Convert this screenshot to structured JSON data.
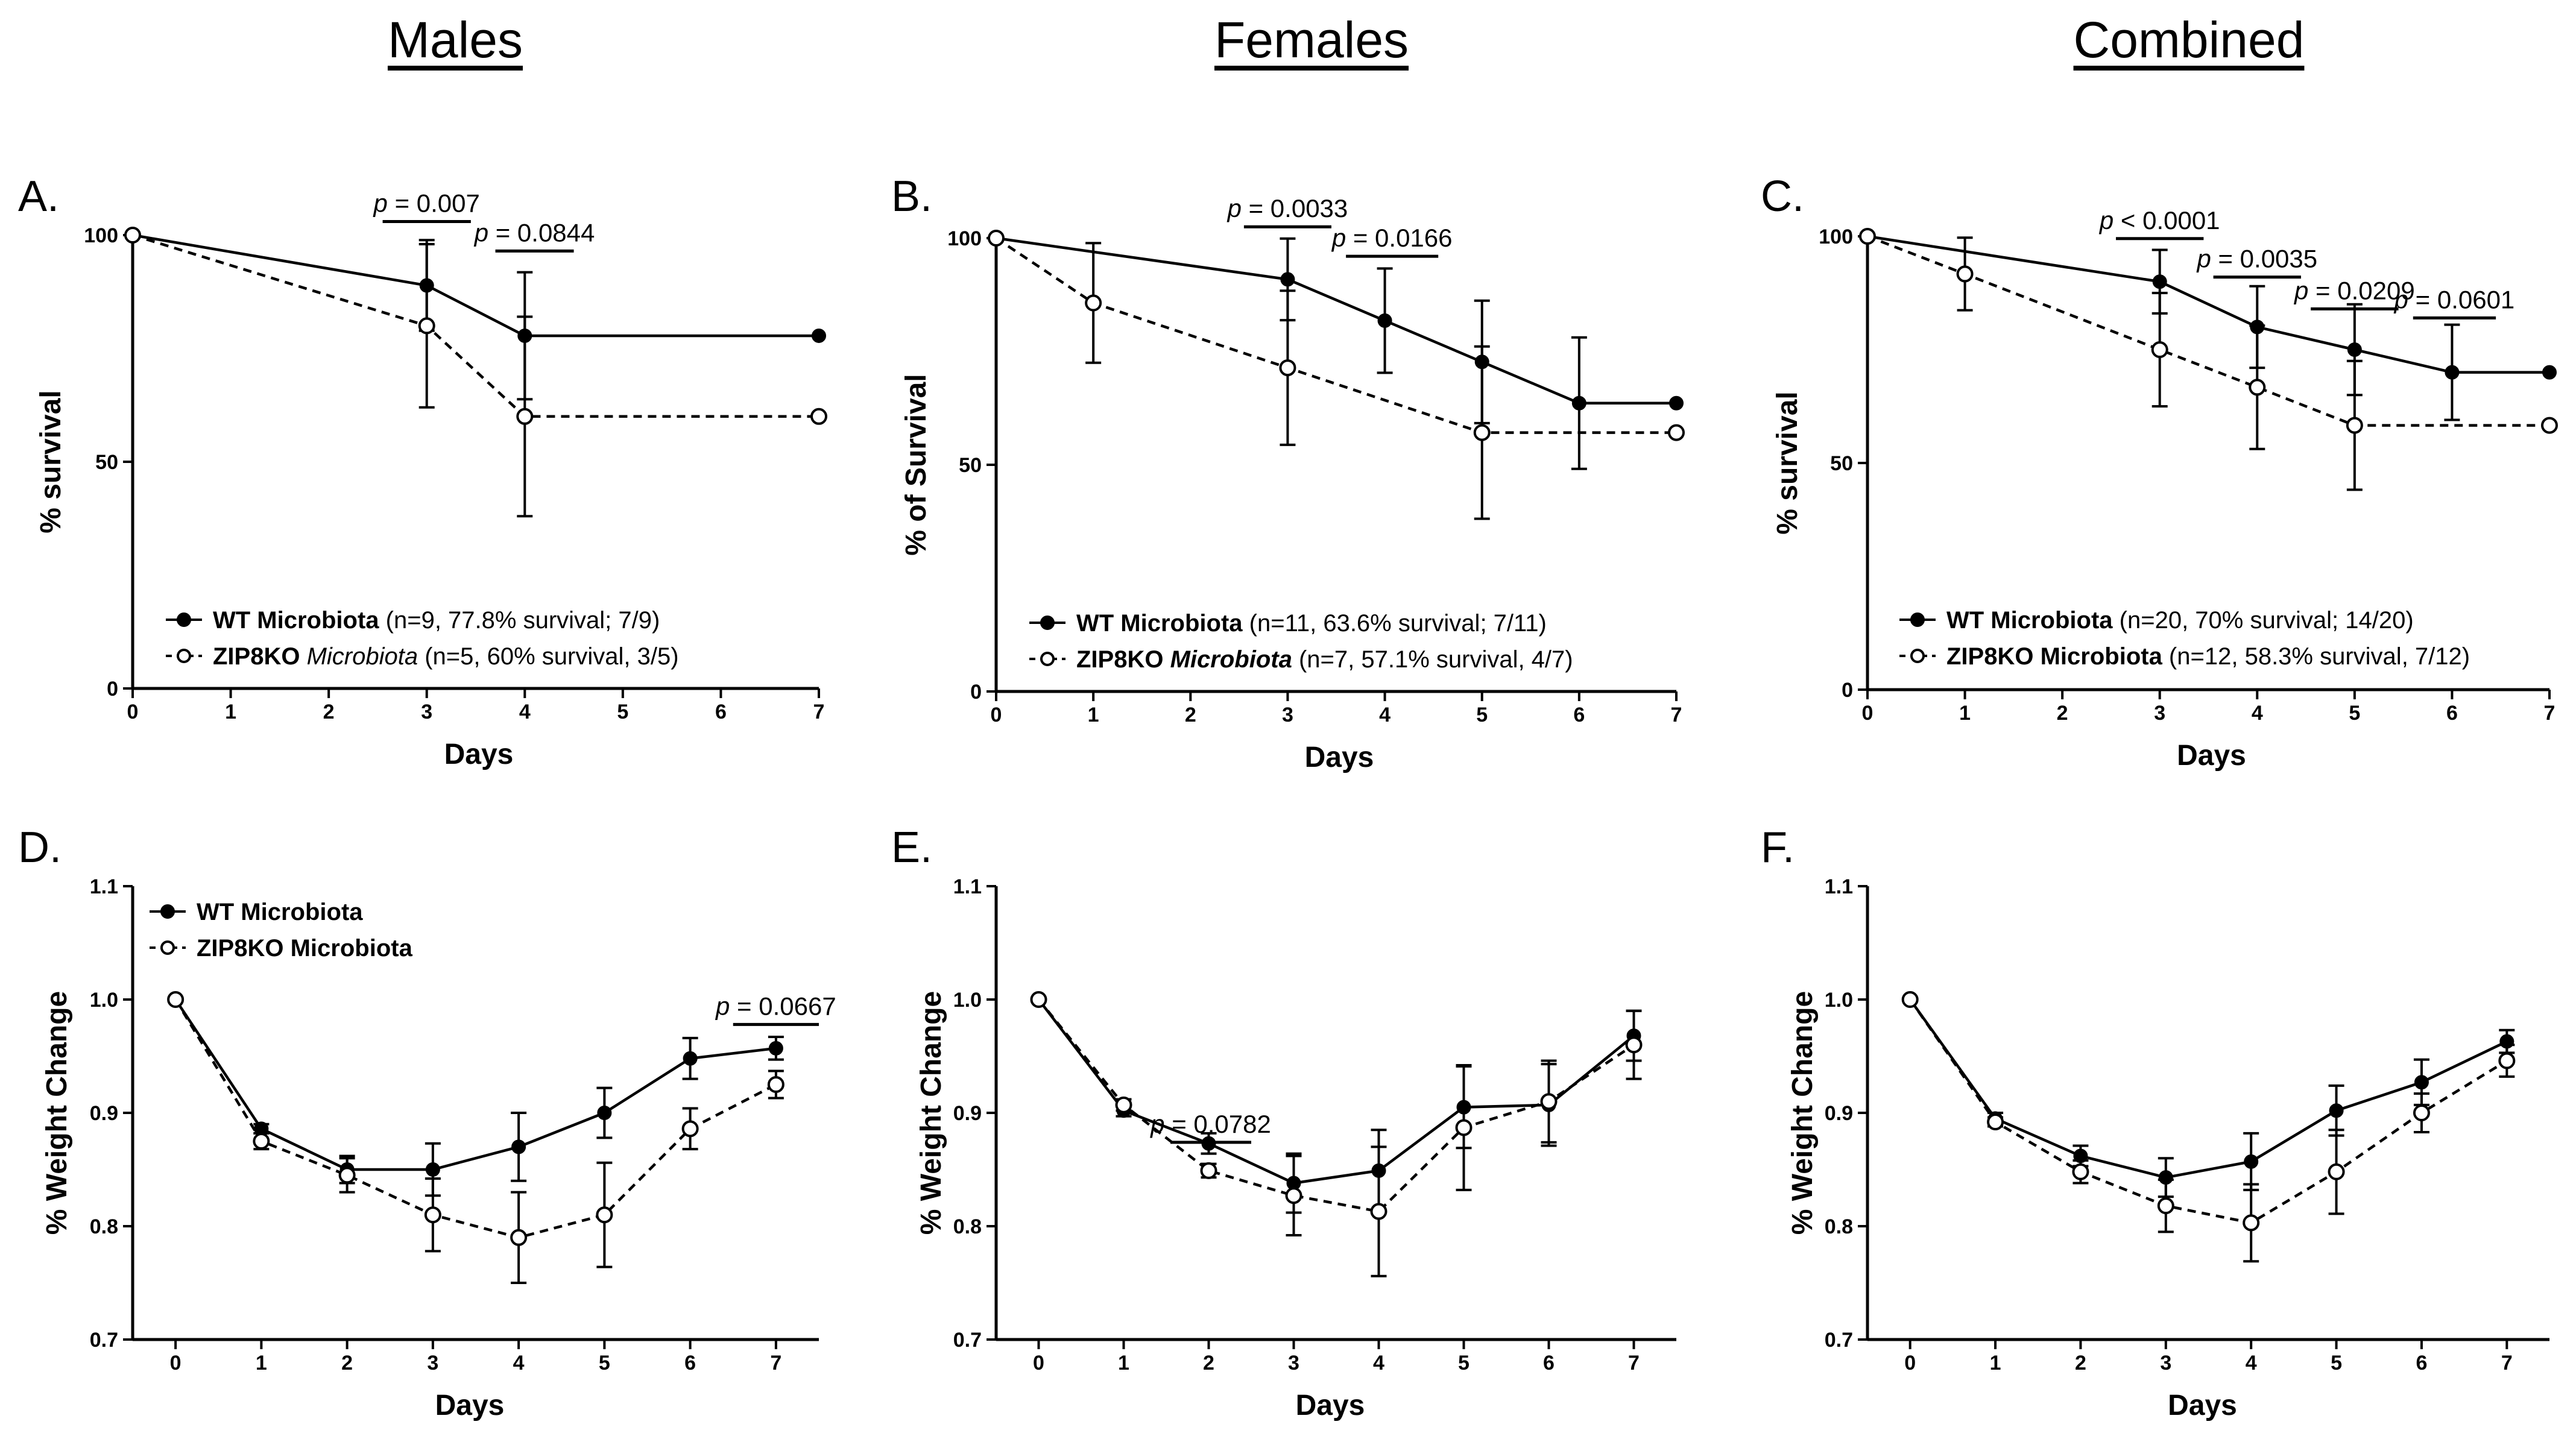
{
  "columns": [
    "Males",
    "Females",
    "Combined"
  ],
  "chart_data": [
    {
      "id": "A",
      "type": "line",
      "panel_label": "A.",
      "xlabel": "Days",
      "ylabel": "% survival",
      "xlim": [
        0,
        7
      ],
      "ylim": [
        0,
        100
      ],
      "xticks": [
        0,
        1,
        2,
        3,
        4,
        5,
        6,
        7
      ],
      "yticks": [
        0,
        50,
        100
      ],
      "series": [
        {
          "name": "WT Microbiota",
          "legend_bold": "WT Microbiota",
          "legend_rest": " (n=9, 77.8% survival; 7/9)",
          "style": "solid",
          "marker": "filled",
          "x": [
            0,
            3,
            4,
            7
          ],
          "y": [
            100,
            88.9,
            77.8,
            77.8
          ],
          "err": [
            null,
            10,
            14,
            null
          ]
        },
        {
          "name": "ZIP8KO Microbiota",
          "legend_bold": "ZIP8KO ",
          "legend_italic": "Microbiota",
          "legend_rest": " (n=5, 60% survival, 3/5)",
          "style": "dashed",
          "marker": "open",
          "x": [
            0,
            3,
            4,
            7
          ],
          "y": [
            100,
            80,
            60,
            60
          ],
          "err": [
            null,
            18,
            22,
            null
          ]
        }
      ],
      "annotations": [
        {
          "prefix": "p",
          "text": " = 0.007",
          "x1": 2.55,
          "x2": 3.45,
          "y": 103
        },
        {
          "prefix": "p",
          "text": " = 0.0844",
          "x1": 3.7,
          "x2": 4.5,
          "y": 96.5
        }
      ]
    },
    {
      "id": "B",
      "type": "line",
      "panel_label": "B.",
      "xlabel": "Days",
      "ylabel": "% of Survival",
      "xlim": [
        0,
        7
      ],
      "ylim": [
        0,
        100
      ],
      "xticks": [
        0,
        1,
        2,
        3,
        4,
        5,
        6,
        7
      ],
      "yticks": [
        0,
        50,
        100
      ],
      "series": [
        {
          "name": "WT Microbiota",
          "legend_bold": "WT Microbiota",
          "legend_rest": " (n=11, 63.6% survival; 7/11)",
          "style": "solid",
          "marker": "filled",
          "x": [
            0,
            3,
            4,
            5,
            6,
            7
          ],
          "y": [
            100,
            90.9,
            81.8,
            72.7,
            63.6,
            63.6
          ],
          "err": [
            null,
            9,
            11.5,
            13.5,
            14.5,
            null
          ]
        },
        {
          "name": "ZIP8KO Microbiota",
          "legend_bold": "ZIP8KO ",
          "legend_boldital": "Microbiota",
          "legend_rest": " (n=7, 57.1% survival, 4/7)",
          "style": "dashed",
          "marker": "open",
          "x": [
            0,
            1,
            3,
            5,
            7
          ],
          "y": [
            100,
            85.7,
            71.4,
            57.1,
            57.1
          ],
          "err": [
            null,
            13.2,
            17,
            19,
            null
          ]
        }
      ],
      "annotations": [
        {
          "prefix": "p",
          "text": " = 0.0033",
          "x1": 2.55,
          "x2": 3.45,
          "y": 102.5
        },
        {
          "prefix": "p",
          "text": " = 0.0166",
          "x1": 3.6,
          "x2": 4.55,
          "y": 96
        }
      ]
    },
    {
      "id": "C",
      "type": "line",
      "panel_label": "C.",
      "xlabel": "Days",
      "ylabel": "% survival",
      "xlim": [
        0,
        7
      ],
      "ylim": [
        0,
        100
      ],
      "xticks": [
        0,
        1,
        2,
        3,
        4,
        5,
        6,
        7
      ],
      "yticks": [
        0,
        50,
        100
      ],
      "series": [
        {
          "name": "WT Microbiota",
          "legend_bold": "WT Microbiota",
          "legend_rest": " (n=20, 70% survival; 14/20)",
          "style": "solid",
          "marker": "filled",
          "x": [
            0,
            3,
            4,
            5,
            6,
            7
          ],
          "y": [
            100,
            90,
            80,
            75,
            70,
            70
          ],
          "err": [
            null,
            7,
            9,
            10,
            10.5,
            null
          ]
        },
        {
          "name": "ZIP8KO Microbiota",
          "legend_bold": "ZIP8KO Microbiota",
          "legend_rest": " (n=12, 58.3% survival, 7/12)",
          "style": "dashed",
          "marker": "open",
          "x": [
            0,
            1,
            3,
            4,
            5,
            7
          ],
          "y": [
            100,
            91.7,
            75,
            66.7,
            58.3,
            58.3
          ],
          "err": [
            null,
            8,
            12.5,
            13.6,
            14.2,
            null
          ]
        }
      ],
      "annotations": [
        {
          "prefix": "p",
          "text": " < 0.0001",
          "x1": 2.55,
          "x2": 3.45,
          "y": 99.5
        },
        {
          "prefix": "p",
          "text": " = 0.0035",
          "x1": 3.55,
          "x2": 4.45,
          "y": 91
        },
        {
          "prefix": "p",
          "text": " = 0.0209",
          "x1": 4.55,
          "x2": 5.45,
          "y": 84
        },
        {
          "prefix": "p",
          "text": " = 0.0601",
          "x1": 5.6,
          "x2": 6.45,
          "y": 82
        }
      ]
    },
    {
      "id": "D",
      "type": "line",
      "panel_label": "D.",
      "xlabel": "Days",
      "ylabel": "% Weight Change",
      "xlim": [
        -0.5,
        7.5
      ],
      "ylim": [
        0.7,
        1.1
      ],
      "xticks": [
        0,
        1,
        2,
        3,
        4,
        5,
        6,
        7
      ],
      "yticks": [
        0.7,
        0.8,
        0.9,
        1.0,
        1.1
      ],
      "ytick_labels": [
        "0.7",
        "0.8",
        "0.9",
        "1.0",
        "1.1"
      ],
      "legend": [
        {
          "label": "WT Microbiota",
          "style": "solid",
          "marker": "filled"
        },
        {
          "label": "ZIP8KO Microbiota",
          "style": "dashed",
          "marker": "open"
        }
      ],
      "series": [
        {
          "name": "WT Microbiota",
          "style": "solid",
          "marker": "filled",
          "x": [
            0,
            1,
            2,
            3,
            4,
            5,
            6,
            7
          ],
          "y": [
            1.0,
            0.886,
            0.85,
            0.85,
            0.87,
            0.9,
            0.948,
            0.957
          ],
          "err": [
            0,
            0.004,
            0.012,
            0.023,
            0.03,
            0.022,
            0.018,
            0.01
          ]
        },
        {
          "name": "ZIP8KO Microbiota",
          "style": "dashed",
          "marker": "open",
          "x": [
            0,
            1,
            2,
            3,
            4,
            5,
            6,
            7
          ],
          "y": [
            1.0,
            0.875,
            0.845,
            0.81,
            0.79,
            0.81,
            0.886,
            0.925
          ],
          "err": [
            0,
            0.007,
            0.015,
            0.032,
            0.04,
            0.046,
            0.018,
            0.012
          ]
        }
      ],
      "annotations": [
        {
          "prefix": "p",
          "text": " = 0.0667",
          "x1": 6.5,
          "x2": 7.5,
          "y": 0.978
        }
      ]
    },
    {
      "id": "E",
      "type": "line",
      "panel_label": "E.",
      "xlabel": "Days",
      "ylabel": "% Weight Change",
      "xlim": [
        -0.5,
        7.5
      ],
      "ylim": [
        0.7,
        1.1
      ],
      "xticks": [
        0,
        1,
        2,
        3,
        4,
        5,
        6,
        7
      ],
      "yticks": [
        0.7,
        0.8,
        0.9,
        1.0,
        1.1
      ],
      "ytick_labels": [
        "0.7",
        "0.8",
        "0.9",
        "1.0",
        "1.1"
      ],
      "series": [
        {
          "name": "WT Microbiota",
          "style": "solid",
          "marker": "filled",
          "x": [
            0,
            1,
            2,
            3,
            4,
            5,
            6,
            7
          ],
          "y": [
            1.0,
            0.902,
            0.873,
            0.838,
            0.849,
            0.905,
            0.907,
            0.968
          ],
          "err": [
            0,
            0.005,
            0.009,
            0.026,
            0.036,
            0.036,
            0.036,
            0.022
          ]
        },
        {
          "name": "ZIP8KO Microbiota",
          "style": "dashed",
          "marker": "open",
          "x": [
            0,
            1,
            2,
            3,
            4,
            5,
            6,
            7
          ],
          "y": [
            1.0,
            0.907,
            0.849,
            0.827,
            0.813,
            0.887,
            0.91,
            0.96
          ],
          "err": [
            0,
            0.005,
            0.006,
            0.035,
            0.057,
            0.055,
            0.036,
            0.03
          ]
        }
      ],
      "annotations": [
        {
          "prefix": "p",
          "text": " = 0.0782",
          "x1": 1.55,
          "x2": 2.5,
          "y": 0.874
        }
      ]
    },
    {
      "id": "F",
      "type": "line",
      "panel_label": "F.",
      "xlabel": "Days",
      "ylabel": "% Weight Change",
      "xlim": [
        -0.5,
        7.5
      ],
      "ylim": [
        0.7,
        1.1
      ],
      "xticks": [
        0,
        1,
        2,
        3,
        4,
        5,
        6,
        7
      ],
      "yticks": [
        0.7,
        0.8,
        0.9,
        1.0,
        1.1
      ],
      "ytick_labels": [
        "0.7",
        "0.8",
        "0.9",
        "1.0",
        "1.1"
      ],
      "series": [
        {
          "name": "WT Microbiota",
          "style": "solid",
          "marker": "filled",
          "x": [
            0,
            1,
            2,
            3,
            4,
            5,
            6,
            7
          ],
          "y": [
            1.0,
            0.895,
            0.862,
            0.843,
            0.857,
            0.902,
            0.927,
            0.963
          ],
          "err": [
            0,
            0.005,
            0.009,
            0.017,
            0.025,
            0.022,
            0.02,
            0.01
          ]
        },
        {
          "name": "ZIP8KO Microbiota",
          "style": "dashed",
          "marker": "open",
          "x": [
            0,
            1,
            2,
            3,
            4,
            5,
            6,
            7
          ],
          "y": [
            1.0,
            0.892,
            0.848,
            0.818,
            0.803,
            0.848,
            0.9,
            0.946
          ],
          "err": [
            0,
            0.004,
            0.01,
            0.023,
            0.034,
            0.037,
            0.017,
            0.014
          ]
        }
      ],
      "annotations": []
    }
  ]
}
